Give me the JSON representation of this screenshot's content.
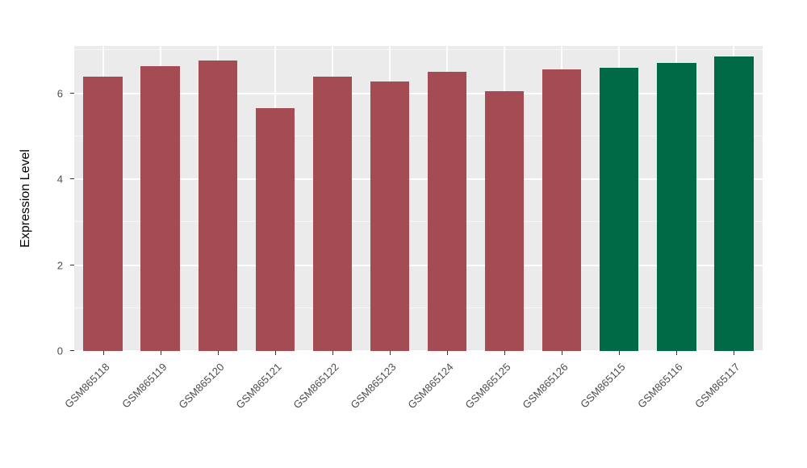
{
  "chart_data": {
    "type": "bar",
    "title": "",
    "xlabel": "",
    "ylabel": "Expression Level",
    "categories": [
      "GSM865118",
      "GSM865119",
      "GSM865120",
      "GSM865121",
      "GSM865122",
      "GSM865123",
      "GSM865124",
      "GSM865125",
      "GSM865126",
      "GSM865115",
      "GSM865116",
      "GSM865117"
    ],
    "values": [
      6.38,
      6.63,
      6.76,
      5.66,
      6.38,
      6.28,
      6.5,
      6.04,
      6.55,
      6.59,
      6.7,
      6.86
    ],
    "groups": [
      "red",
      "red",
      "red",
      "red",
      "red",
      "red",
      "red",
      "red",
      "red",
      "green",
      "green",
      "green"
    ],
    "group_colors": {
      "red": "#A44B54",
      "green": "#006946"
    },
    "ylim": [
      0,
      7.1
    ],
    "yticks": [
      0,
      2,
      4,
      6
    ],
    "ytick_labels": [
      "0",
      "2",
      "4",
      "6"
    ],
    "yticks_minor": [
      1,
      3,
      5,
      7
    ],
    "grid": "on",
    "legend": "none",
    "panel_bg": "#EBEBEB",
    "bar_width_frac": 0.68
  },
  "style": {
    "tick_text_color": "#4D4D4D",
    "axis_title_color": "#000000",
    "grid_major_color": "#FFFFFF",
    "grid_minor_color": "#FFFFFF",
    "tick_mark_color": "#333333"
  }
}
